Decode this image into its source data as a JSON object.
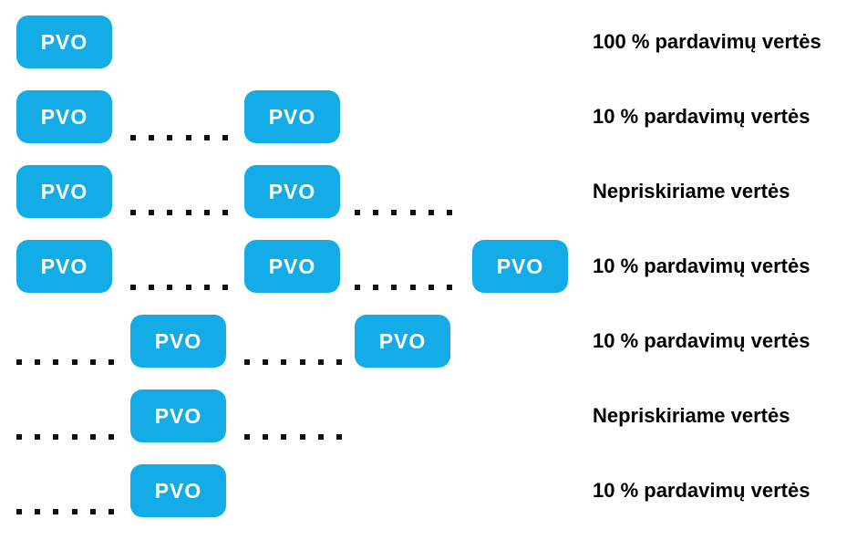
{
  "diagram": {
    "box_label": "PVO",
    "dots_per_group": 6,
    "colors": {
      "background": "#FFFFFF",
      "box": "#14ACE6",
      "box_text": "#FFFFFF",
      "label_text": "#000000",
      "dots": "#111111"
    },
    "rows": [
      {
        "label": "100 % pardavimų vertės",
        "cells": [
          "box",
          "",
          "",
          "",
          ""
        ]
      },
      {
        "label": "10 % pardavimų vertės",
        "cells": [
          "box",
          "dots",
          "box",
          "",
          ""
        ]
      },
      {
        "label": "Nepriskiriame vertės",
        "cells": [
          "box",
          "dots",
          "box",
          "dots",
          ""
        ]
      },
      {
        "label": "10 % pardavimų vertės",
        "cells": [
          "box",
          "dots",
          "box",
          "dots",
          "box"
        ]
      },
      {
        "label": "10 % pardavimų vertės",
        "cells": [
          "dots",
          "box",
          "dots",
          "box",
          ""
        ]
      },
      {
        "label": "Nepriskiriame vertės",
        "cells": [
          "dots",
          "box",
          "dots",
          "",
          ""
        ]
      },
      {
        "label": "10 % pardavimų vertės",
        "cells": [
          "dots",
          "box",
          "",
          "",
          ""
        ]
      }
    ]
  }
}
